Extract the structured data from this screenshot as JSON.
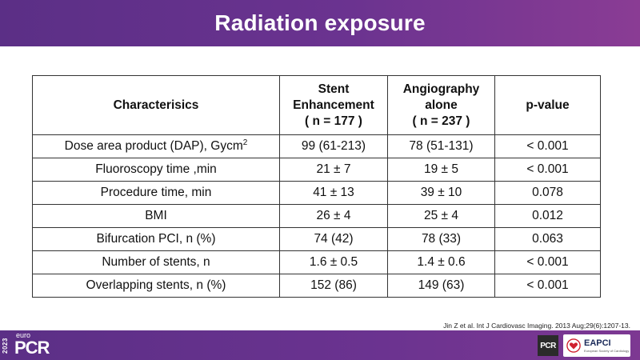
{
  "slide": {
    "title": "Radiation exposure"
  },
  "table": {
    "headers": [
      {
        "lines": [
          "Characterisics"
        ]
      },
      {
        "lines": [
          "Stent",
          "Enhancement",
          "( n = 177 )"
        ]
      },
      {
        "lines": [
          "Angiography",
          "alone",
          "( n = 237 )"
        ]
      },
      {
        "lines": [
          "p-value"
        ]
      }
    ],
    "rows": [
      {
        "characteristic": "Dose area product (DAP), Gycm",
        "sup": "2",
        "stent": "99 (61-213)",
        "angio": "78 (51-131)",
        "p": "< 0.001"
      },
      {
        "characteristic": "Fluoroscopy time ,min",
        "stent": "21 ± 7",
        "angio": "19 ± 5",
        "p": "< 0.001"
      },
      {
        "characteristic": "Procedure time, min",
        "stent": "41 ± 13",
        "angio": "39 ± 10",
        "p": "0.078"
      },
      {
        "characteristic": "BMI",
        "stent": "26 ± 4",
        "angio": "25 ± 4",
        "p": "0.012"
      },
      {
        "characteristic": "Bifurcation PCI, n (%)",
        "stent": "74 (42)",
        "angio": "78 (33)",
        "p": "0.063"
      },
      {
        "characteristic": "Number of stents, n",
        "stent": "1.6 ± 0.5",
        "angio": "1.4 ± 0.6",
        "p": "< 0.001"
      },
      {
        "characteristic": "Overlapping stents, n (%)",
        "stent": "152 (86)",
        "angio": "149 (63)",
        "p": "< 0.001"
      }
    ]
  },
  "citation": "Jin Z et al. Int J Cardiovasc Imaging. 2013 Aug;29(6):1207-13.",
  "footer": {
    "year": "2023",
    "logo_small": "euro",
    "logo_main": "PCR",
    "pcr_badge": "PCR",
    "eapci_name": "EAPCI",
    "eapci_sub": "European Society of Cardiology"
  },
  "colors": {
    "brand_purple": "#5b2f86",
    "brand_magenta": "#8a3c94",
    "eapci_red": "#d0202e",
    "eapci_navy": "#1b2b5a"
  }
}
